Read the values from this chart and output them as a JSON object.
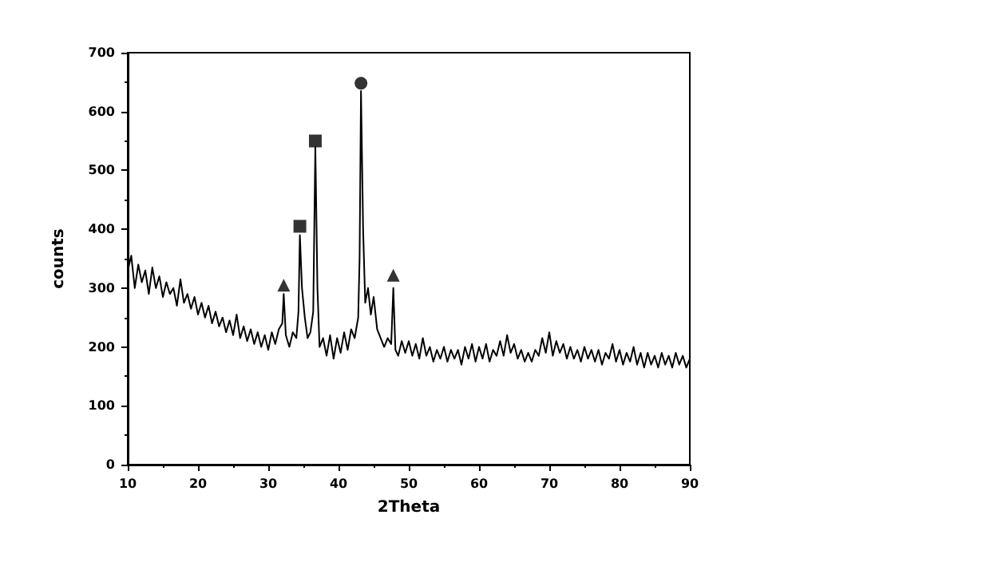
{
  "chart_data": {
    "type": "line",
    "xlabel": "2Theta",
    "ylabel": "counts",
    "xlim": [
      10,
      90
    ],
    "xticks": [
      10,
      20,
      30,
      40,
      50,
      60,
      70,
      80,
      90
    ],
    "ylim": [
      0,
      700
    ],
    "yticks": [
      0,
      100,
      200,
      300,
      400,
      500,
      600,
      700
    ],
    "grid": false,
    "marker": "none",
    "line_style": "solid",
    "series": [
      {
        "color": "#000000",
        "x": [
          10,
          10.5,
          11,
          11.5,
          12,
          12.5,
          13,
          13.5,
          14,
          14.5,
          15,
          15.5,
          16,
          16.5,
          17,
          17.5,
          18,
          18.5,
          19,
          19.5,
          20,
          20.5,
          21,
          21.5,
          22,
          22.5,
          23,
          23.5,
          24,
          24.5,
          25,
          25.5,
          26,
          26.5,
          27,
          27.5,
          28,
          28.5,
          29,
          29.5,
          30,
          30.5,
          31,
          31.5,
          32,
          32.2,
          32.5,
          33,
          33.5,
          34,
          34.3,
          34.5,
          34.8,
          35.2,
          35.6,
          36,
          36.4,
          36.7,
          37,
          37.3,
          37.8,
          38.3,
          38.8,
          39.3,
          39.8,
          40.3,
          40.8,
          41.3,
          41.8,
          42.3,
          42.8,
          43,
          43.2,
          43.5,
          43.8,
          44.2,
          44.6,
          45,
          45.5,
          46,
          46.5,
          47,
          47.5,
          47.8,
          48.1,
          48.5,
          49,
          49.5,
          50,
          50.5,
          51,
          51.5,
          52,
          52.5,
          53,
          53.5,
          54,
          54.5,
          55,
          55.5,
          56,
          56.5,
          57,
          57.5,
          58,
          58.5,
          59,
          59.5,
          60,
          60.5,
          61,
          61.5,
          62,
          62.5,
          63,
          63.5,
          64,
          64.5,
          65,
          65.5,
          66,
          66.5,
          67,
          67.5,
          68,
          68.5,
          69,
          69.5,
          70,
          70.5,
          71,
          71.5,
          72,
          72.5,
          73,
          73.5,
          74,
          74.5,
          75,
          75.5,
          76,
          76.5,
          77,
          77.5,
          78,
          78.5,
          79,
          79.5,
          80,
          80.5,
          81,
          81.5,
          82,
          82.5,
          83,
          83.5,
          84,
          84.5,
          85,
          85.5,
          86,
          86.5,
          87,
          87.5,
          88,
          88.5,
          89,
          89.5,
          90
        ],
        "values": [
          330,
          355,
          300,
          340,
          310,
          330,
          290,
          335,
          300,
          320,
          285,
          310,
          290,
          300,
          270,
          315,
          275,
          290,
          265,
          285,
          255,
          275,
          250,
          270,
          240,
          260,
          235,
          250,
          225,
          245,
          220,
          255,
          215,
          235,
          210,
          230,
          205,
          225,
          200,
          220,
          195,
          225,
          205,
          230,
          240,
          290,
          220,
          200,
          225,
          215,
          260,
          390,
          300,
          250,
          215,
          225,
          260,
          540,
          300,
          200,
          215,
          185,
          220,
          180,
          215,
          190,
          225,
          195,
          230,
          215,
          250,
          350,
          635,
          400,
          275,
          300,
          255,
          285,
          230,
          215,
          200,
          215,
          205,
          300,
          195,
          185,
          210,
          190,
          210,
          185,
          205,
          180,
          215,
          185,
          200,
          175,
          195,
          180,
          200,
          175,
          195,
          180,
          195,
          170,
          200,
          180,
          205,
          175,
          200,
          180,
          205,
          175,
          195,
          185,
          210,
          185,
          220,
          190,
          205,
          180,
          195,
          175,
          190,
          175,
          195,
          185,
          215,
          190,
          225,
          185,
          210,
          190,
          205,
          180,
          200,
          180,
          195,
          175,
          200,
          180,
          195,
          175,
          195,
          170,
          190,
          180,
          205,
          175,
          195,
          170,
          190,
          175,
          200,
          170,
          190,
          165,
          190,
          170,
          185,
          165,
          190,
          170,
          185,
          165,
          190,
          170,
          185,
          165,
          180
        ]
      },
      {
        "type": "scatter",
        "marker": "triangle",
        "color": "#000000",
        "x": [
          32.2,
          47.8
        ],
        "values": [
          305,
          322
        ]
      },
      {
        "type": "scatter",
        "marker": "square",
        "color": "#000000",
        "x": [
          34.5,
          36.7
        ],
        "values": [
          405,
          550
        ]
      },
      {
        "type": "scatter",
        "marker": "circle",
        "color": "#000000",
        "x": [
          43.2
        ],
        "values": [
          648
        ]
      }
    ]
  }
}
